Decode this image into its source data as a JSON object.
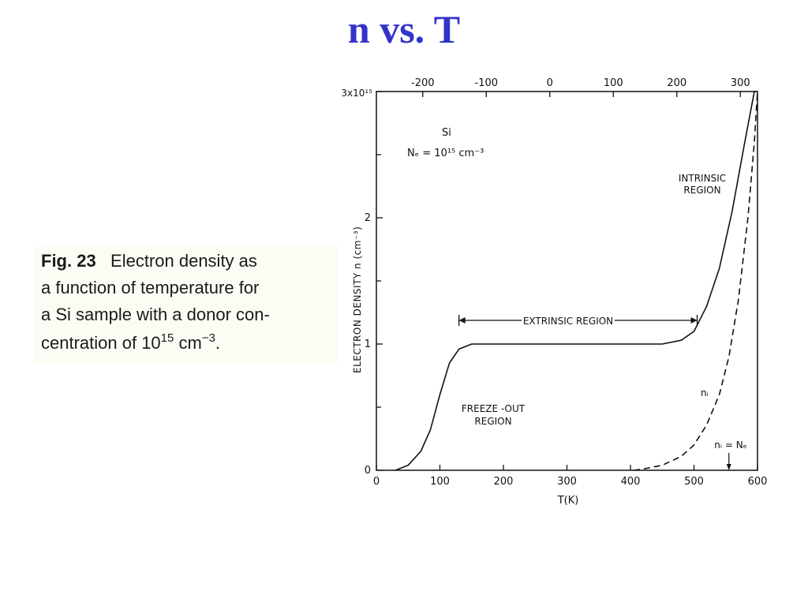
{
  "slide": {
    "title": "n vs. T"
  },
  "caption": {
    "fig_label": "Fig. 23",
    "line1_rest": "Electron density as",
    "line2": "a function of temperature for",
    "line3": "a Si sample with a donor con-",
    "line4_pre": "centration of 10",
    "line4_exp1": "15",
    "line4_mid": " cm",
    "line4_exp2": "−3",
    "line4_end": "."
  },
  "chart_data": {
    "type": "line",
    "ylabel": "ELECTRON DENSITY  n (cm⁻³)",
    "xlabel": "T(K)",
    "xlim": [
      0,
      600
    ],
    "ylim": [
      0,
      3
    ],
    "y_top_tick_label": "3x10¹⁵",
    "x_tick_labels": [
      "0",
      "100",
      "200",
      "300",
      "400",
      "500",
      "600"
    ],
    "y_tick_labels": [
      "0",
      "1",
      "2"
    ],
    "x_top_tick_labels": [
      "-200",
      "-100",
      "0",
      "100",
      "200",
      "300"
    ],
    "annotations": {
      "material": "Si",
      "donor": "Nₑ = 10¹⁵ cm⁻³",
      "intrinsic_1": "INTRINSIC",
      "intrinsic_2": "REGION",
      "extrinsic": "EXTRINSIC REGION",
      "freeze_1": "FREEZE -OUT",
      "freeze_2": "REGION",
      "ni": "nᵢ",
      "ni_eq_nd": "nᵢ = Nₑ"
    },
    "series": [
      {
        "style": "solid",
        "x": [
          30,
          50,
          70,
          85,
          100,
          115,
          130,
          150,
          200,
          300,
          400,
          450,
          480,
          500,
          520,
          540,
          560,
          580,
          595,
          600
        ],
        "y": [
          0,
          0.04,
          0.15,
          0.32,
          0.6,
          0.85,
          0.96,
          1.0,
          1.0,
          1.0,
          1.0,
          1.0,
          1.03,
          1.1,
          1.3,
          1.6,
          2.05,
          2.6,
          3.0,
          3.0
        ]
      },
      {
        "style": "dashed",
        "x": [
          405,
          420,
          450,
          480,
          500,
          520,
          540,
          555,
          570,
          585,
          595,
          600
        ],
        "y": [
          0,
          0.01,
          0.04,
          0.11,
          0.2,
          0.36,
          0.6,
          0.9,
          1.35,
          2.0,
          2.6,
          3.0
        ]
      }
    ],
    "extrinsic_range_x": [
      130,
      505
    ],
    "ni_nd_x": 555,
    "colors": {
      "curve": "#111111",
      "slide_title": "#3333cc"
    }
  }
}
